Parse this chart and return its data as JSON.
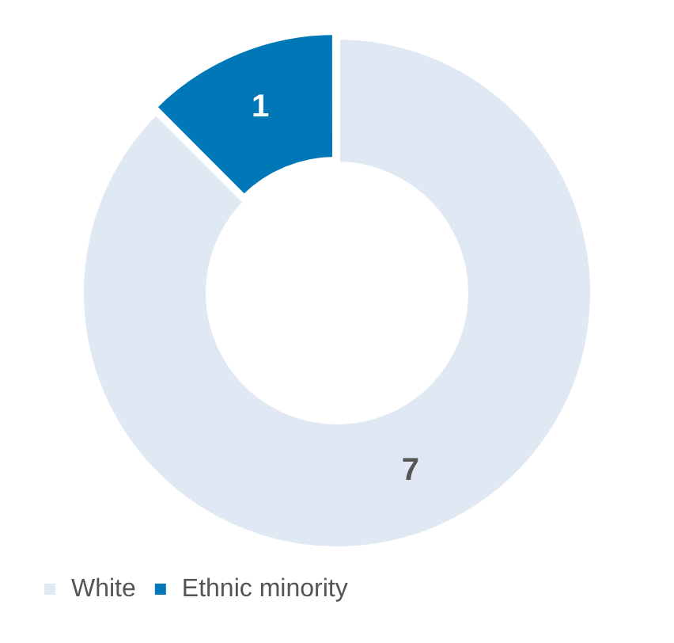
{
  "chart_data": {
    "type": "donut",
    "categories": [
      "White",
      "Ethnic minority"
    ],
    "values": [
      7,
      1
    ],
    "colors": [
      "#dfe8f3",
      "#0077b6"
    ],
    "data_labels": true,
    "legend": "bottom"
  }
}
